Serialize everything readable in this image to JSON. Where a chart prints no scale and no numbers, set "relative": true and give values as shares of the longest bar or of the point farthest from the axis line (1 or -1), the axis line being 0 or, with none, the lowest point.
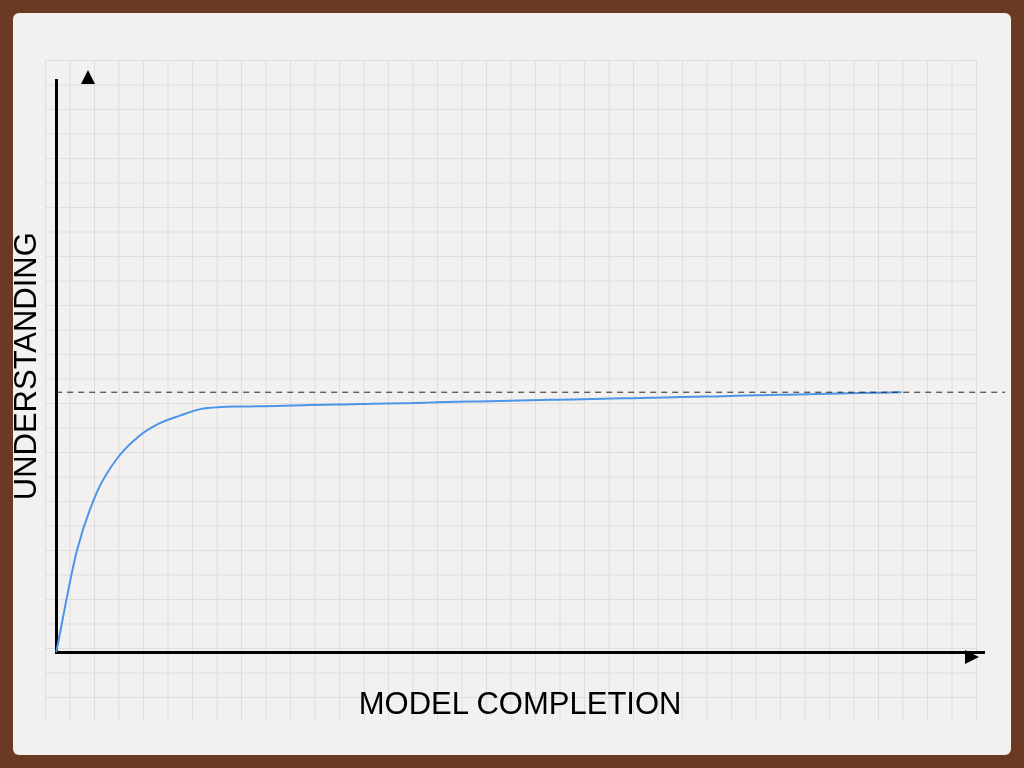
{
  "chart_data": {
    "type": "line",
    "relative": true,
    "xlabel": "MODEL COMPLETION",
    "ylabel": "UNDERSTANDING",
    "categories": [
      null,
      null,
      null,
      null,
      null,
      null,
      null,
      null,
      null,
      null,
      null,
      null,
      null,
      null,
      null,
      null,
      null,
      null,
      null,
      null,
      null,
      null,
      null,
      null,
      null,
      null,
      null,
      null,
      null,
      null,
      null,
      null,
      null,
      null,
      null,
      null,
      null,
      null,
      null,
      null,
      null,
      null,
      null,
      null,
      null,
      null
    ],
    "series": [
      {
        "color": "#4b95e9",
        "values": [
          0,
          0.39,
          0.62,
          0.75,
          0.83,
          0.88,
          0.91,
          0.935,
          0.943,
          0.945,
          0.946,
          0.948,
          0.95,
          0.952,
          0.953,
          0.955,
          0.957,
          0.958,
          0.96,
          0.962,
          0.964,
          0.965,
          0.967,
          0.969,
          0.971,
          0.972,
          0.974,
          0.976,
          0.977,
          0.979,
          0.981,
          0.983,
          0.984,
          0.986,
          0.988,
          0.99,
          0.991,
          0.993,
          0.995,
          0.997,
          0.998,
          1,
          null,
          null,
          null,
          null
        ]
      }
    ],
    "ref_lines": [
      {
        "axis": "y",
        "value": 1,
        "color": "#222222",
        "line_style": "dashed"
      }
    ],
    "grid": false,
    "legend": false,
    "marker": "none",
    "line_style": "solid"
  }
}
